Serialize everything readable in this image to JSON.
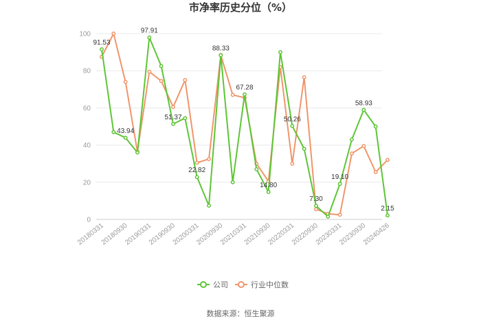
{
  "chart_data": {
    "type": "line",
    "title": "市净率历史分位（%）",
    "xlabel": "",
    "ylabel": "",
    "ylim": [
      0,
      100
    ],
    "yticks": [
      0,
      20,
      40,
      60,
      80,
      100
    ],
    "grid": true,
    "legend_position": "bottom",
    "x_tick_labels": [
      "20180331",
      "20180930",
      "20190331",
      "20190930",
      "20200331",
      "20200930",
      "20210331",
      "20210930",
      "20220331",
      "20220930",
      "20230331",
      "20230930",
      "20240426"
    ],
    "x": [
      "20180331",
      "20180630",
      "20180930",
      "20181231",
      "20190331",
      "20190630",
      "20190930",
      "20191231",
      "20200331",
      "20200630",
      "20200930",
      "20201231",
      "20210331",
      "20210630",
      "20210930",
      "20211231",
      "20220331",
      "20220630",
      "20220930",
      "20221231",
      "20230331",
      "20230630",
      "20230930",
      "20231231",
      "20240426"
    ],
    "series": [
      {
        "name": "公司",
        "color": "#5dc535",
        "values": [
          91.53,
          47,
          43.94,
          36,
          97.91,
          82.5,
          51.37,
          54.5,
          22.82,
          7.4,
          88.33,
          20,
          67.28,
          27,
          14.8,
          90,
          50.26,
          38,
          7.3,
          1.5,
          19.1,
          43,
          58.93,
          50,
          2.15
        ],
        "labels": {
          "0": "91.53",
          "2": "43.94",
          "4": "97.91",
          "6": "51.37",
          "8": "22.82",
          "10": "88.33",
          "12": "67.28",
          "14": "14.80",
          "16": "50.26",
          "18": "7.30",
          "20": "19.10",
          "22": "58.93",
          "24": "2.15"
        }
      },
      {
        "name": "行业中位数",
        "color": "#f0956a",
        "values": [
          87.5,
          100,
          74,
          36.5,
          79.5,
          74.5,
          60.5,
          75,
          30.5,
          32.5,
          88.5,
          67,
          65.5,
          30,
          20.5,
          82,
          30,
          76.5,
          5.5,
          3,
          2.5,
          35.5,
          39.5,
          25.5,
          32
        ]
      }
    ]
  },
  "footer": {
    "source": "数据来源：恒生聚源"
  }
}
